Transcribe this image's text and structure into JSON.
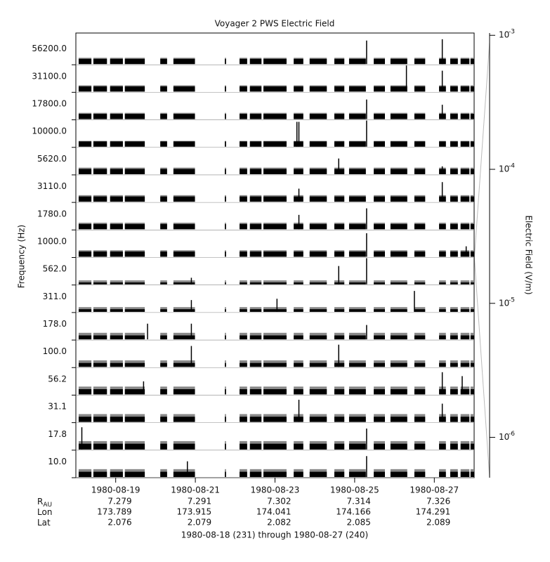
{
  "chart_data": {
    "type": "stacked-panels",
    "title": "Voyager 2 PWS Electric Field",
    "ylabel": "Frequency (Hz)",
    "y2label": "Electric Field (V/m)",
    "caption": "1980-08-18 (231) through 1980-08-27 (240)",
    "xlim": [
      0,
      10
    ],
    "xticks": [
      {
        "value": 1,
        "label": "1980-08-19"
      },
      {
        "value": 3,
        "label": "1980-08-21"
      },
      {
        "value": 5,
        "label": "1980-08-23"
      },
      {
        "value": 7,
        "label": "1980-08-25"
      },
      {
        "value": 9,
        "label": "1980-08-27"
      }
    ],
    "panel_ylim": [
      0,
      1
    ],
    "y2lim": [
      5e-07,
      0.00104
    ],
    "y2log": true,
    "y2ticks": [
      {
        "value": 0.001,
        "label": "10",
        "exponent": "-3"
      },
      {
        "value": 0.0001,
        "label": "10",
        "exponent": "-4"
      },
      {
        "value": 1e-05,
        "label": "10",
        "exponent": "-5"
      },
      {
        "value": 1e-06,
        "label": "10",
        "exponent": "-6"
      }
    ],
    "segments": [
      [
        0.07,
        0.39
      ],
      [
        0.44,
        0.78
      ],
      [
        0.86,
        1.18
      ],
      [
        1.23,
        1.73
      ],
      [
        2.12,
        2.29
      ],
      [
        2.45,
        2.99
      ],
      [
        3.74,
        3.77
      ],
      [
        4.11,
        4.3
      ],
      [
        4.37,
        4.66
      ],
      [
        4.71,
        5.29
      ],
      [
        5.47,
        5.71
      ],
      [
        5.87,
        6.3
      ],
      [
        6.49,
        6.74
      ],
      [
        6.86,
        7.28
      ],
      [
        7.48,
        7.76
      ],
      [
        7.9,
        8.32
      ],
      [
        8.5,
        8.77
      ],
      [
        9.12,
        9.29
      ],
      [
        9.4,
        9.59
      ],
      [
        9.66,
        9.88
      ],
      [
        9.91,
        10.0
      ]
    ],
    "series": [
      {
        "name": "56200.0",
        "color": "#000000",
        "level": 0.2,
        "noise": 0.24,
        "spikes": [
          [
            7.3,
            0.9
          ],
          [
            9.2,
            0.95
          ]
        ]
      },
      {
        "name": "31100.0",
        "color": "#000000",
        "level": 0.2,
        "noise": 0.24,
        "spikes": [
          [
            8.3,
            1.0
          ],
          [
            9.2,
            0.8
          ]
        ]
      },
      {
        "name": "17800.0",
        "color": "#000000",
        "level": 0.2,
        "noise": 0.24,
        "spikes": [
          [
            7.3,
            0.75
          ],
          [
            9.2,
            0.55
          ]
        ]
      },
      {
        "name": "10000.0",
        "color": "#000000",
        "level": 0.2,
        "noise": 0.22,
        "spikes": [
          [
            5.55,
            0.95
          ],
          [
            5.6,
            0.95
          ],
          [
            7.3,
            1.0
          ]
        ]
      },
      {
        "name": "5620.0",
        "color": "#000000",
        "level": 0.2,
        "noise": 0.25,
        "spikes": [
          [
            6.6,
            0.6
          ],
          [
            9.2,
            0.3
          ]
        ]
      },
      {
        "name": "3110.0",
        "color": "#000000",
        "level": 0.2,
        "noise": 0.25,
        "spikes": [
          [
            5.6,
            0.5
          ],
          [
            9.2,
            0.75
          ]
        ]
      },
      {
        "name": "1780.0",
        "color": "#000000",
        "level": 0.2,
        "noise": 0.25,
        "spikes": [
          [
            5.6,
            0.55
          ],
          [
            7.3,
            0.8
          ]
        ]
      },
      {
        "name": "1000.0",
        "color": "#000000",
        "level": 0.2,
        "noise": 0.25,
        "spikes": [
          [
            7.3,
            0.9
          ],
          [
            9.8,
            0.4
          ]
        ]
      },
      {
        "name": "562.0",
        "color": "#000000",
        "level": 0.07,
        "noise": 0.15,
        "spikes": [
          [
            6.6,
            0.7
          ],
          [
            7.3,
            1.0
          ],
          [
            2.9,
            0.25
          ]
        ]
      },
      {
        "name": "311.0",
        "color": "#000000",
        "level": 0.1,
        "noise": 0.18,
        "spikes": [
          [
            8.5,
            0.8
          ],
          [
            2.9,
            0.45
          ],
          [
            5.05,
            0.5
          ]
        ]
      },
      {
        "name": "178.0",
        "color": "#000000",
        "level": 0.15,
        "noise": 0.25,
        "spikes": [
          [
            1.8,
            0.6
          ],
          [
            7.3,
            0.55
          ],
          [
            2.9,
            0.6
          ]
        ]
      },
      {
        "name": "100.0",
        "color": "#000000",
        "level": 0.15,
        "noise": 0.25,
        "spikes": [
          [
            6.6,
            0.85
          ],
          [
            2.9,
            0.8
          ]
        ]
      },
      {
        "name": "56.2",
        "color": "#000000",
        "level": 0.2,
        "noise": 0.3,
        "spikes": [
          [
            1.7,
            0.5
          ],
          [
            9.2,
            0.85
          ],
          [
            9.7,
            0.7
          ]
        ]
      },
      {
        "name": "31.1",
        "color": "#000000",
        "level": 0.2,
        "noise": 0.3,
        "spikes": [
          [
            5.6,
            0.85
          ],
          [
            9.2,
            0.7
          ]
        ]
      },
      {
        "name": "17.8",
        "color": "#000000",
        "level": 0.22,
        "noise": 0.32,
        "spikes": [
          [
            0.15,
            0.85
          ],
          [
            7.3,
            0.8
          ]
        ]
      },
      {
        "name": "10.0",
        "color": "#000000",
        "level": 0.2,
        "noise": 0.3,
        "spikes": [
          [
            7.3,
            0.8
          ],
          [
            2.8,
            0.6
          ]
        ]
      }
    ],
    "noise_color": "#888888",
    "ephemeris": {
      "rows": [
        {
          "label": "R",
          "sub": "AU",
          "values": [
            "7.279",
            "7.291",
            "7.302",
            "7.314",
            "7.326"
          ]
        },
        {
          "label": "Lon",
          "values": [
            "173.789",
            "173.915",
            "174.041",
            "174.166",
            "174.291"
          ]
        },
        {
          "label": "Lat",
          "values": [
            "2.076",
            "2.079",
            "2.082",
            "2.085",
            "2.089"
          ]
        }
      ]
    }
  }
}
